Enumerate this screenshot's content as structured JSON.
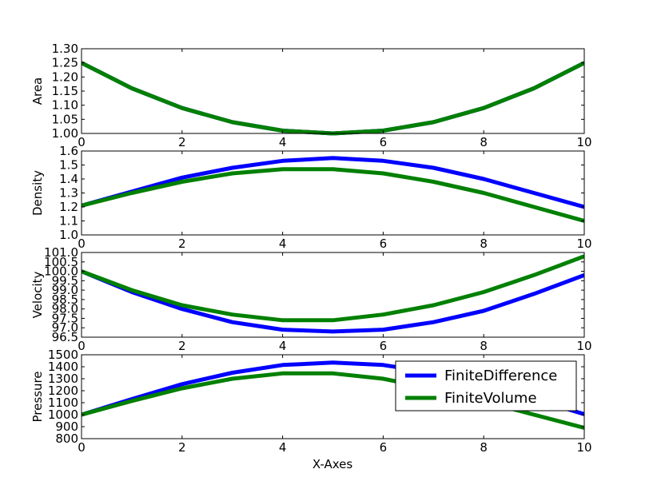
{
  "colors": {
    "finite_difference": "#0000ff",
    "finite_volume": "#008000"
  },
  "chart_data": [
    {
      "type": "line",
      "ylabel": "Area",
      "xlim": [
        0,
        10
      ],
      "ylim": [
        1.0,
        1.3
      ],
      "xticks": [
        "0",
        "2",
        "4",
        "6",
        "8",
        "10"
      ],
      "yticks": [
        "1.00",
        "1.05",
        "1.10",
        "1.15",
        "1.20",
        "1.25",
        "1.30"
      ],
      "x": [
        0,
        1,
        2,
        3,
        4,
        5,
        6,
        7,
        8,
        9,
        10
      ],
      "series": [
        {
          "name": "FiniteDifference",
          "color": "#0000ff",
          "values": [
            1.25,
            1.16,
            1.09,
            1.04,
            1.01,
            1.0,
            1.01,
            1.04,
            1.09,
            1.16,
            1.25
          ]
        },
        {
          "name": "FiniteVolume",
          "color": "#008000",
          "values": [
            1.25,
            1.16,
            1.09,
            1.04,
            1.01,
            1.0,
            1.01,
            1.04,
            1.09,
            1.16,
            1.25
          ]
        }
      ]
    },
    {
      "type": "line",
      "ylabel": "Density",
      "xlim": [
        0,
        10
      ],
      "ylim": [
        1.0,
        1.6
      ],
      "xticks": [
        "0",
        "2",
        "4",
        "6",
        "8",
        "10"
      ],
      "yticks": [
        "1.0",
        "1.1",
        "1.2",
        "1.3",
        "1.4",
        "1.5",
        "1.6"
      ],
      "x": [
        0,
        1,
        2,
        3,
        4,
        5,
        6,
        7,
        8,
        9,
        10
      ],
      "series": [
        {
          "name": "FiniteDifference",
          "color": "#0000ff",
          "values": [
            1.21,
            1.31,
            1.41,
            1.48,
            1.53,
            1.55,
            1.53,
            1.48,
            1.4,
            1.3,
            1.2
          ]
        },
        {
          "name": "FiniteVolume",
          "color": "#008000",
          "values": [
            1.21,
            1.3,
            1.38,
            1.44,
            1.47,
            1.47,
            1.44,
            1.38,
            1.3,
            1.2,
            1.1
          ]
        }
      ]
    },
    {
      "type": "line",
      "ylabel": "Velocity",
      "xlim": [
        0,
        10
      ],
      "ylim": [
        96.5,
        101.0
      ],
      "xticks": [
        "0",
        "2",
        "4",
        "6",
        "8",
        "10"
      ],
      "yticks": [
        "96.5",
        "97.0",
        "97.5",
        "98.0",
        "98.5",
        "99.0",
        "99.5",
        "100.0",
        "100.5",
        "101.0"
      ],
      "x": [
        0,
        1,
        2,
        3,
        4,
        5,
        6,
        7,
        8,
        9,
        10
      ],
      "series": [
        {
          "name": "FiniteDifference",
          "color": "#0000ff",
          "values": [
            100.0,
            98.9,
            98.0,
            97.3,
            96.9,
            96.8,
            96.9,
            97.3,
            97.9,
            98.8,
            99.8
          ]
        },
        {
          "name": "FiniteVolume",
          "color": "#008000",
          "values": [
            100.0,
            99.0,
            98.2,
            97.7,
            97.4,
            97.4,
            97.7,
            98.2,
            98.9,
            99.8,
            100.8
          ]
        }
      ]
    },
    {
      "type": "line",
      "ylabel": "Pressure",
      "xlabel": "X-Axes",
      "xlim": [
        0,
        10
      ],
      "ylim": [
        800,
        1500
      ],
      "xticks": [
        "0",
        "2",
        "4",
        "6",
        "8",
        "10"
      ],
      "yticks": [
        "800",
        "900",
        "1000",
        "1100",
        "1200",
        "1300",
        "1400",
        "1500"
      ],
      "x": [
        0,
        1,
        2,
        3,
        4,
        5,
        6,
        7,
        8,
        9,
        10
      ],
      "legend": {
        "placement": "top-right",
        "entries": [
          "FiniteDifference",
          "FiniteVolume"
        ]
      },
      "series": [
        {
          "name": "FiniteDifference",
          "color": "#0000ff",
          "values": [
            1000,
            1130,
            1255,
            1350,
            1415,
            1435,
            1415,
            1350,
            1250,
            1130,
            1005
          ]
        },
        {
          "name": "FiniteVolume",
          "color": "#008000",
          "values": [
            1000,
            1115,
            1220,
            1300,
            1345,
            1345,
            1300,
            1215,
            1110,
            1000,
            890
          ]
        }
      ]
    }
  ]
}
